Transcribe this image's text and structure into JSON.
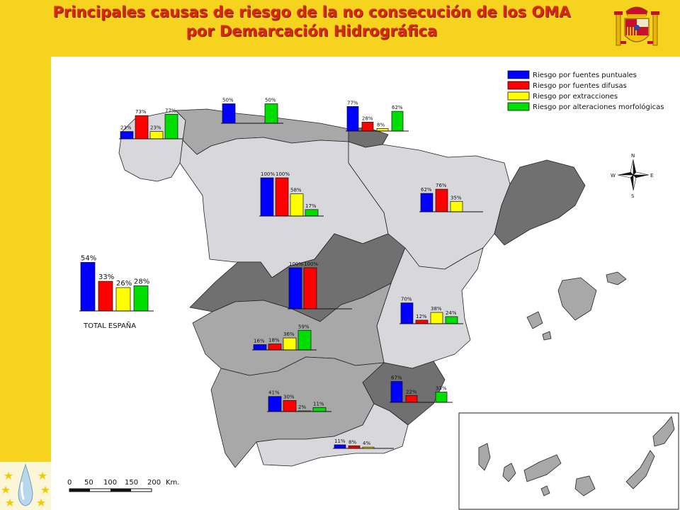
{
  "title": {
    "line1": "Principales causas de riesgo de la no consecución de los OMA",
    "line2": "por Demarcación Hidrográfica"
  },
  "colors": {
    "puntuales": "#0000ff",
    "difusas": "#ff0000",
    "extracciones": "#ffff00",
    "morfologicas": "#00dd00",
    "region_light": "#d8d8dc",
    "region_mid": "#a8a8a8",
    "region_dark": "#707070",
    "banner": "#f5d31e",
    "title": "#d9280f"
  },
  "chart_data": {
    "type": "bar",
    "legend_position": "top-right",
    "series_names": [
      "Riesgo por fuentes puntuales",
      "Riesgo por fuentes difusas",
      "Riesgo por extracciones",
      "Riesgo por alteraciones morfológicas"
    ],
    "total": {
      "label": "TOTAL ESPAÑA",
      "values": [
        54,
        33,
        26,
        28
      ],
      "labels": [
        "54%",
        "33%",
        "26%",
        "28%"
      ]
    },
    "regions": [
      {
        "values": [
          23,
          73,
          23,
          77
        ],
        "labels": [
          "23%",
          "73%",
          "23%",
          "77%"
        ]
      },
      {
        "values": [
          50,
          0,
          0,
          50
        ],
        "labels": [
          "50%",
          "",
          "",
          "50%"
        ]
      },
      {
        "values": [
          77,
          28,
          8,
          62
        ],
        "labels": [
          "77%",
          "28%",
          "8%",
          "62%"
        ]
      },
      {
        "values": [
          100,
          100,
          58,
          17
        ],
        "labels": [
          "100%",
          "100%",
          "58%",
          "17%"
        ]
      },
      {
        "values": [
          62,
          76,
          35,
          0
        ],
        "labels": [
          "62%",
          "76%",
          "35%",
          ""
        ]
      },
      {
        "values": [
          100,
          100,
          0,
          0
        ],
        "labels": [
          "100%",
          "100%",
          "",
          ""
        ]
      },
      {
        "values": [
          70,
          12,
          38,
          24
        ],
        "labels": [
          "70%",
          "12%",
          "38%",
          "24%"
        ]
      },
      {
        "values": [
          16,
          18,
          36,
          59
        ],
        "labels": [
          "16%",
          "18%",
          "36%",
          "59%"
        ]
      },
      {
        "values": [
          67,
          22,
          0,
          33
        ],
        "labels": [
          "67%",
          "22%",
          "",
          "33%"
        ]
      },
      {
        "values": [
          41,
          30,
          2,
          11
        ],
        "labels": [
          "41%",
          "30%",
          "2%",
          "11%"
        ]
      },
      {
        "values": [
          11,
          8,
          4,
          0
        ],
        "labels": [
          "11%",
          "8%",
          "4%",
          ""
        ]
      }
    ]
  },
  "scale_bar": {
    "ticks": [
      "0",
      "50",
      "100",
      "150",
      "200"
    ],
    "unit": "Km."
  },
  "compass": {
    "n": "N",
    "s": "S",
    "e": "E",
    "w": "W"
  },
  "icons": {
    "crest": "spanish-coat-of-arms-icon",
    "eu_logo": "eu-water-drop-logo-icon",
    "compass": "compass-rose-icon"
  }
}
